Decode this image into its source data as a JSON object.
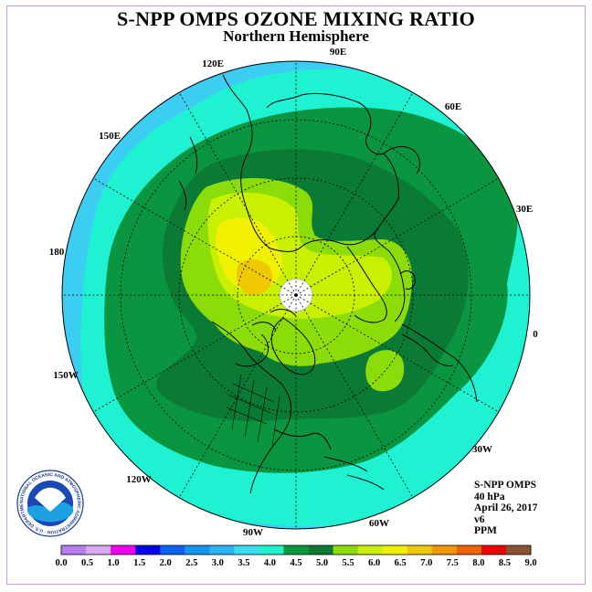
{
  "title": "S-NPP OMPS OZONE MIXING RATIO",
  "subtitle": "Northern Hemisphere",
  "info": {
    "instrument": "S-NPP OMPS",
    "level": "40 hPa",
    "date": "April 26, 2017",
    "version": "v6",
    "units": "PPM"
  },
  "logo": {
    "text": "NOAA",
    "ring_text": "NATIONAL OCEANIC AND ATMOSPHERIC ADMINISTRATION · U.S. DEPARTMENT OF COMMERCE"
  },
  "longitude_labels": [
    "90E",
    "60E",
    "30E",
    "0",
    "30W",
    "60W",
    "90W",
    "120W",
    "150W",
    "180",
    "150E",
    "120E"
  ],
  "colorbar": {
    "ticks": [
      "0.0",
      "0.5",
      "1.0",
      "1.5",
      "2.0",
      "2.5",
      "3.0",
      "3.5",
      "4.0",
      "4.5",
      "5.0",
      "5.5",
      "6.0",
      "6.5",
      "7.0",
      "7.5",
      "8.0",
      "8.5",
      "9.0"
    ],
    "colors": [
      "#b87ef0",
      "#d8a8f0",
      "#f000f0",
      "#0000e8",
      "#0a64f0",
      "#1496f0",
      "#28b4f0",
      "#3cdcf0",
      "#1ef0d2",
      "#0a9a3c",
      "#0b7a32",
      "#8cdc0a",
      "#c8f000",
      "#f0f000",
      "#f0c800",
      "#f09600",
      "#f06400",
      "#f00000",
      "#8c5032"
    ]
  },
  "map_colors": {
    "c35": "#3ccdf2",
    "c40": "#1ef2d2",
    "c45": "#0a9640",
    "c50": "#0b7a34",
    "c55": "#8cdc0a",
    "c60": "#c8f000",
    "c65": "#f0f000",
    "c70": "#f0c800",
    "pole": "#ffffff"
  }
}
